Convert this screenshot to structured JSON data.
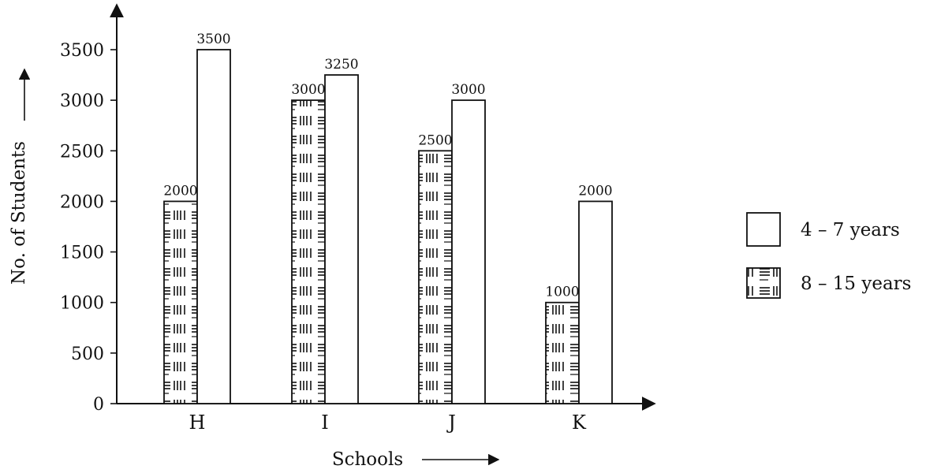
{
  "chart_data": {
    "type": "bar",
    "categories": [
      "H",
      "I",
      "J",
      "K"
    ],
    "series": [
      {
        "name": "8 – 15 years",
        "values": [
          2000,
          3000,
          2500,
          1000
        ],
        "pattern": "hatched"
      },
      {
        "name": "4 – 7 years",
        "values": [
          3500,
          3250,
          3000,
          2000
        ],
        "pattern": "plain"
      }
    ],
    "data_labels": [
      [
        "2000",
        "3000",
        "2500",
        "1000"
      ],
      [
        "3500",
        "3250",
        "3000",
        "2000"
      ]
    ],
    "xlabel": "Schools",
    "ylabel": "No. of Students",
    "ylim": [
      0,
      3500
    ],
    "yticks": [
      0,
      500,
      1000,
      1500,
      2000,
      2500,
      3000,
      3500
    ],
    "ytick_labels": [
      "0",
      "500",
      "1000",
      "1500",
      "2000",
      "2500",
      "3000",
      "3500"
    ],
    "grid": false,
    "legend_position": "right",
    "legend": [
      {
        "label": "4 – 7 years",
        "pattern": "plain"
      },
      {
        "label": "8 – 15 years",
        "pattern": "hatched"
      }
    ],
    "colors": {
      "ink": "#111111",
      "background": "#ffffff"
    }
  }
}
